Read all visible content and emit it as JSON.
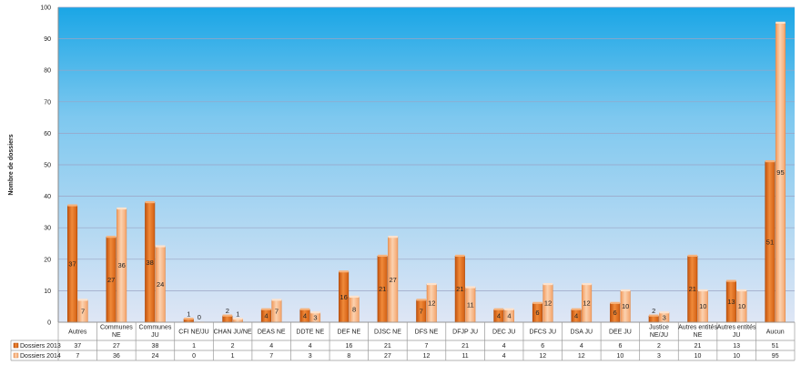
{
  "chart_data": {
    "type": "bar",
    "title": "",
    "xlabel": "",
    "ylabel": "Nombre de dossiers",
    "ylim": [
      0,
      100
    ],
    "yticks": [
      0,
      10,
      20,
      30,
      40,
      50,
      60,
      70,
      80,
      90,
      100
    ],
    "categories": [
      "Autres",
      "Communes NE",
      "Communes JU",
      "CFI NE/JU",
      "CHAN JU/NE",
      "DEAS NE",
      "DDTE NE",
      "DEF NE",
      "DJSC NE",
      "DFS NE",
      "DFJP JU",
      "DEC JU",
      "DFCS JU",
      "DSA JU",
      "DEE JU",
      "Justice NE/JU",
      "Autres entités NE",
      "Autres entités JU",
      "Aucun"
    ],
    "series": [
      {
        "name": "Dossiers 2013",
        "color": "#e8701a",
        "values": [
          37,
          27,
          38,
          1,
          2,
          4,
          4,
          16,
          21,
          7,
          21,
          4,
          6,
          4,
          6,
          2,
          21,
          13,
          51
        ]
      },
      {
        "name": "Dossiers 2014",
        "color": "#f5a56c",
        "values": [
          7,
          36,
          24,
          0,
          1,
          7,
          3,
          8,
          27,
          12,
          11,
          4,
          12,
          12,
          10,
          3,
          10,
          10,
          95
        ]
      }
    ],
    "grid": true,
    "legend": "table-left",
    "background_gradient": [
      "#1aa6e6",
      "#dfe6f5"
    ]
  }
}
